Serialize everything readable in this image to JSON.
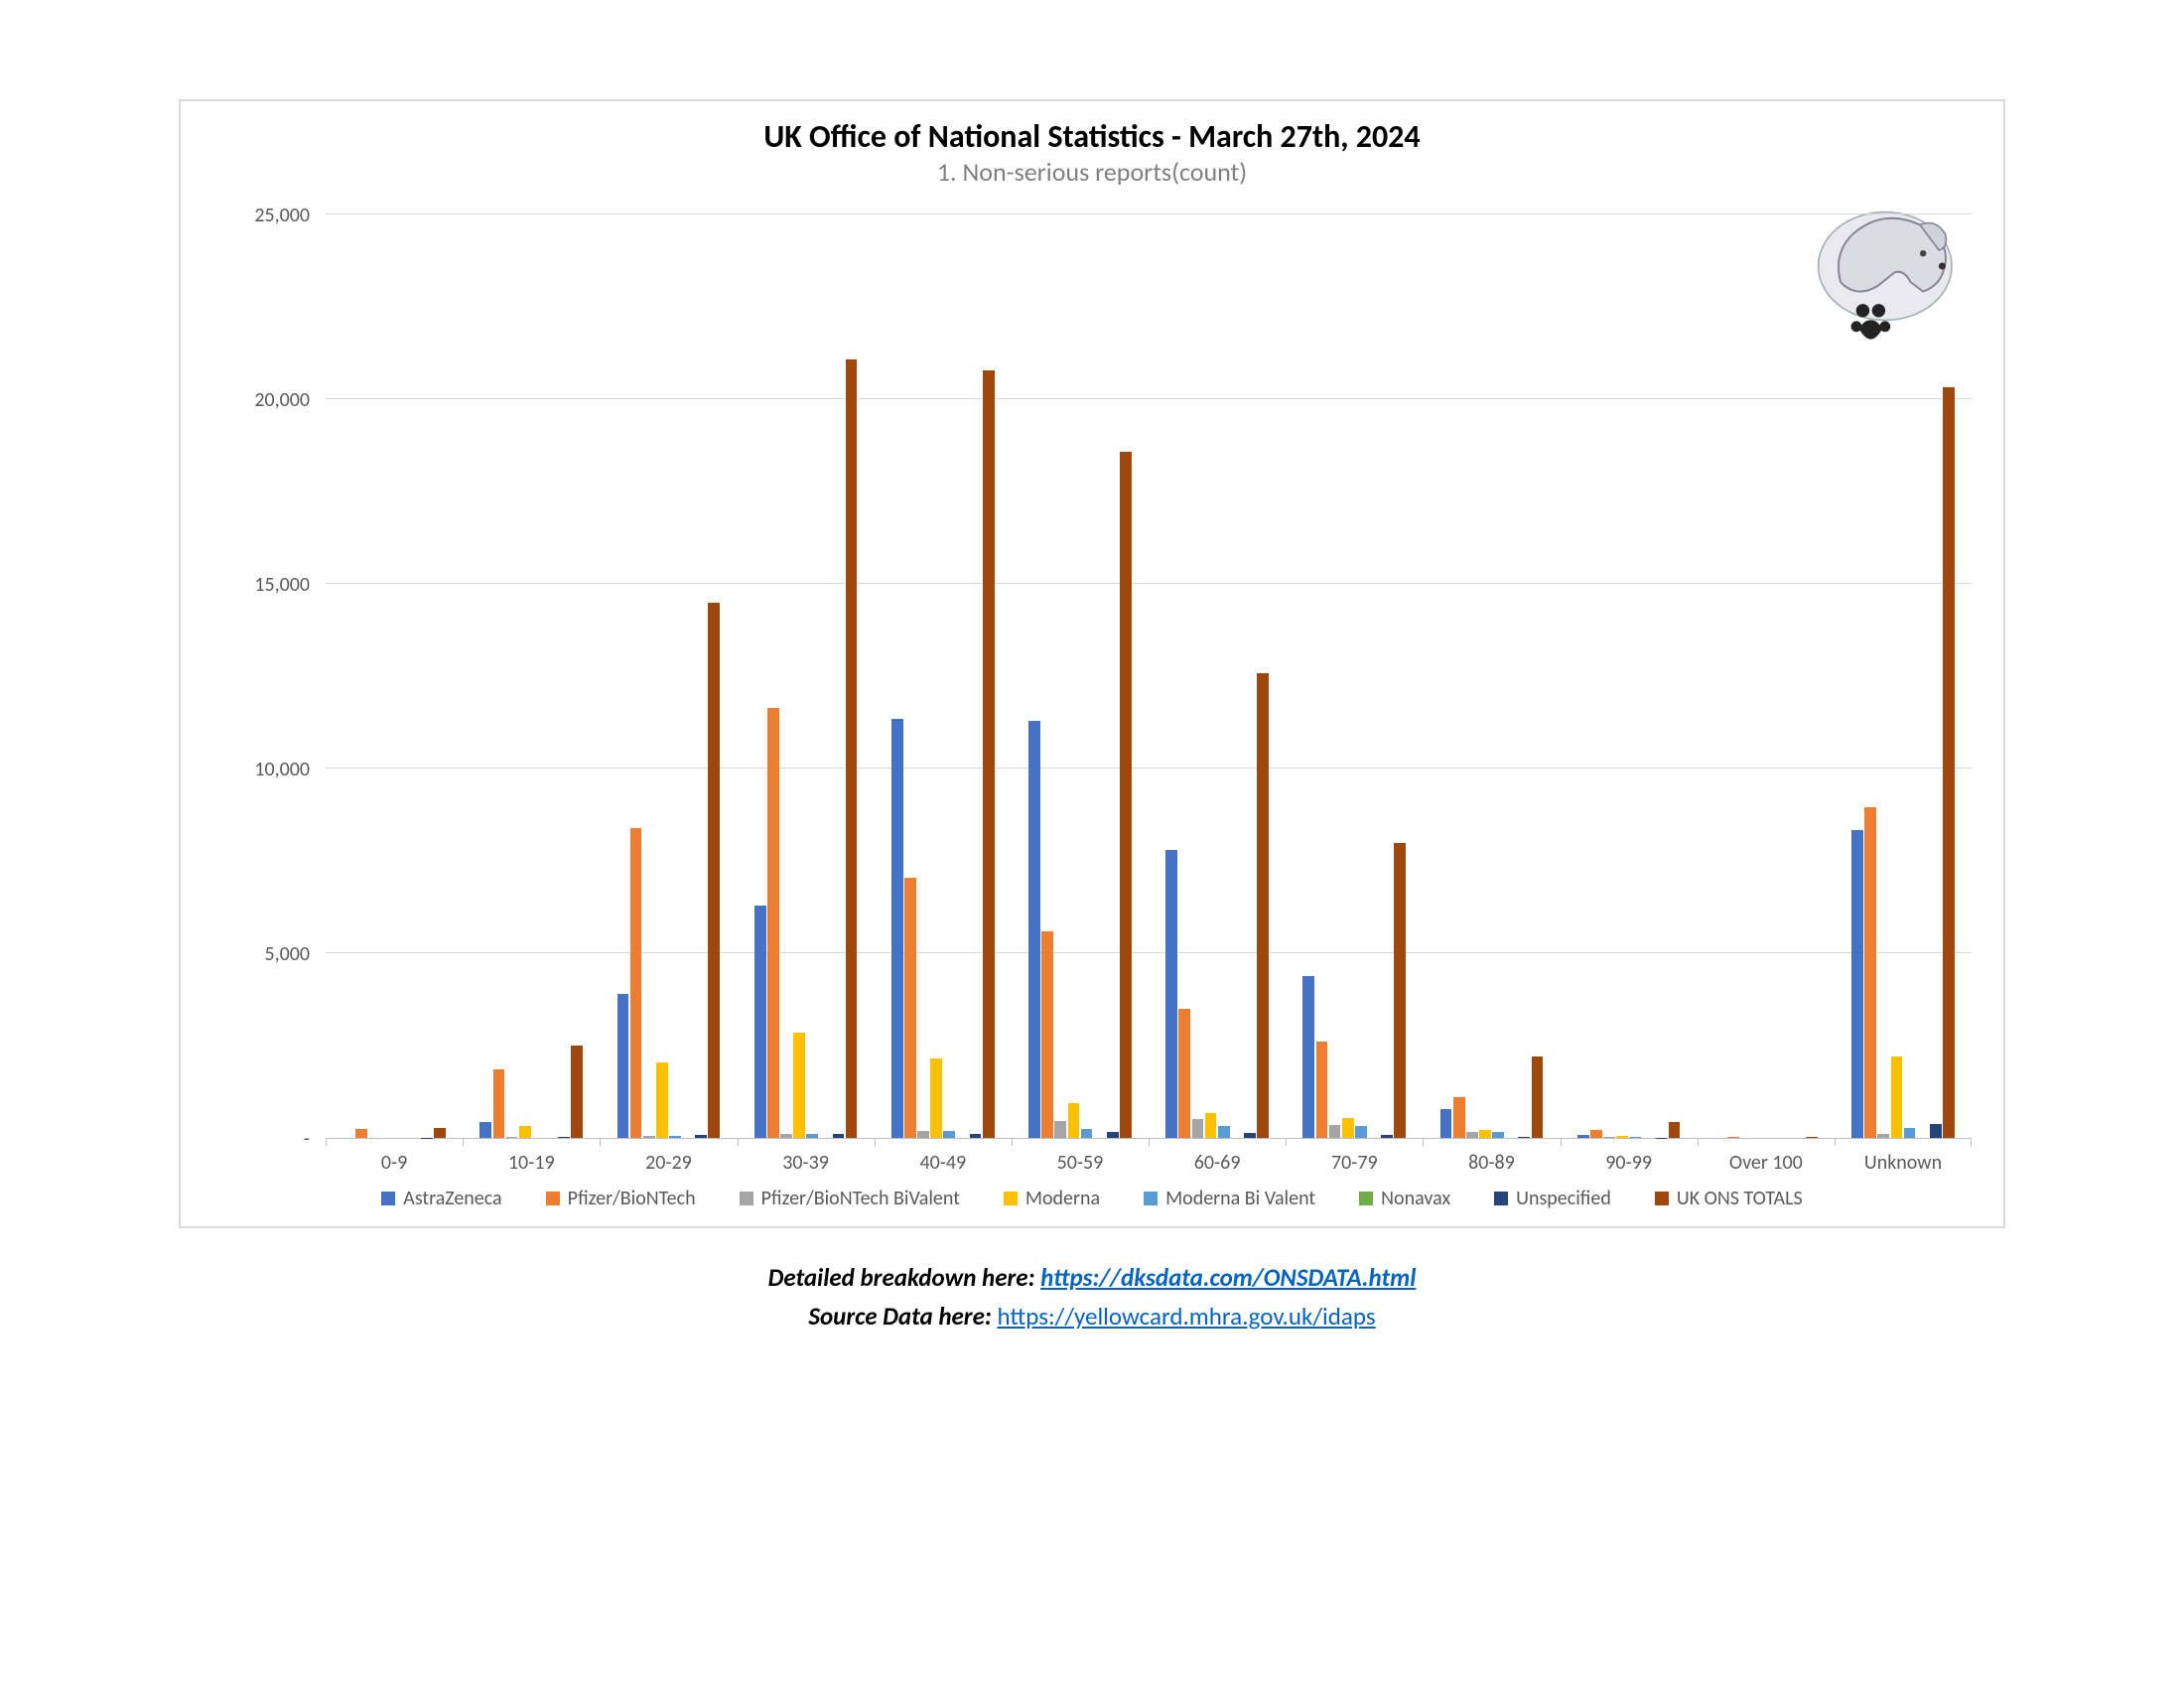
{
  "chart": {
    "type": "bar",
    "title": "UK Office of National Statistics - March 27th, 2024",
    "title_fontsize": 32,
    "subtitle": "1. Non-serious reports(count)",
    "subtitle_fontsize": 26,
    "background_color": "#ffffff",
    "border_color": "#d9d9d9",
    "grid_color": "#d9d9d9",
    "axis_line_color": "#bfbfbf",
    "label_color": "#595959",
    "label_fontsize": 20,
    "ylim": [
      0,
      25000
    ],
    "ytick_step": 5000,
    "yticks": [
      "-",
      "5,000",
      "10,000",
      "15,000",
      "20,000",
      "25,000"
    ],
    "categories": [
      "0-9",
      "10-19",
      "20-29",
      "30-39",
      "40-49",
      "50-59",
      "60-69",
      "70-79",
      "80-89",
      "90-99",
      "Over 100",
      "Unknown"
    ],
    "series": [
      {
        "name": "AstraZeneca",
        "color": "#4472c4",
        "values": [
          0,
          420,
          3900,
          6300,
          11350,
          11300,
          7800,
          4400,
          780,
          80,
          0,
          8350
        ]
      },
      {
        "name": "Pfizer/BioNTech",
        "color": "#ed7d31",
        "values": [
          230,
          1850,
          8400,
          11650,
          7050,
          5600,
          3500,
          2600,
          1100,
          220,
          30,
          8950
        ]
      },
      {
        "name": "Pfizer/BioNTech BiValent",
        "color": "#a5a5a5",
        "values": [
          0,
          20,
          60,
          120,
          180,
          450,
          520,
          360,
          160,
          40,
          0,
          120
        ]
      },
      {
        "name": "Moderna",
        "color": "#ffc000",
        "values": [
          0,
          320,
          2050,
          2850,
          2150,
          930,
          680,
          530,
          220,
          60,
          0,
          2200
        ]
      },
      {
        "name": "Moderna Bi Valent",
        "color": "#5b9bd5",
        "values": [
          0,
          0,
          60,
          120,
          180,
          240,
          320,
          320,
          150,
          30,
          0,
          260
        ]
      },
      {
        "name": "Nonavax",
        "color": "#70ad47",
        "values": [
          0,
          0,
          0,
          0,
          0,
          0,
          0,
          0,
          0,
          0,
          0,
          0
        ]
      },
      {
        "name": "Unspecified",
        "color": "#264478",
        "values": [
          10,
          30,
          70,
          100,
          120,
          150,
          130,
          90,
          40,
          10,
          0,
          380
        ]
      },
      {
        "name": "UK ONS TOTALS",
        "color": "#9e480e",
        "values": [
          260,
          2500,
          14500,
          21100,
          20800,
          18600,
          12600,
          8000,
          2200,
          420,
          30,
          20350
        ]
      }
    ],
    "group_padding": 0.12,
    "bar_gap": 0.01
  },
  "below": {
    "line1_label": "Detailed breakdown here: ",
    "line1_link_text": "https://dksdata.com/ONSDATA.html",
    "line2_label": "Source Data here: ",
    "line2_link_text": "https://yellowcard.mhra.gov.uk/idaps"
  },
  "logo": {
    "name": "wolf-paw-logo"
  }
}
